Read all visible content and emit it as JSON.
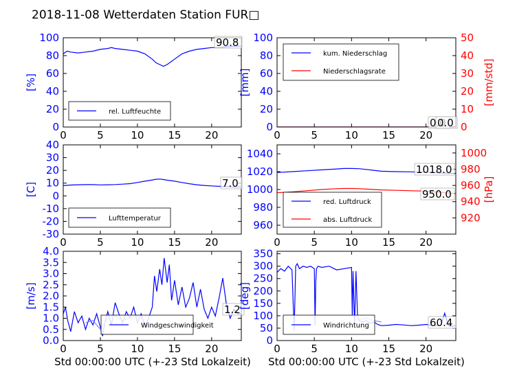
{
  "figure": {
    "title": "2018-11-08 Wetterdaten Station FUR□",
    "xlabel": "Std 00:00:00 UTC (+-23 Std Lokalzeit)"
  },
  "colors": {
    "blue": "#0000ff",
    "red": "#ff0000",
    "light_blue": "#8080ff"
  },
  "chart_data": [
    {
      "type": "line",
      "panel": "humidity",
      "ylabel": "[%]",
      "xlim": [
        0,
        24
      ],
      "ylim": [
        0,
        100
      ],
      "xticks": [
        0,
        5,
        10,
        15,
        20
      ],
      "yticks": [
        0,
        20,
        40,
        60,
        80,
        100
      ],
      "y_tick_color": "blue",
      "grid": false,
      "legend_position": "lower-left",
      "last_value_label": "90.8",
      "series": [
        {
          "name": "rel. Luftfeuchte",
          "color": "blue",
          "x": [
            0,
            0.5,
            1,
            2,
            3,
            4,
            5,
            6,
            6.5,
            7,
            8,
            9,
            10,
            11,
            12,
            12.5,
            13,
            13.5,
            14,
            15,
            16,
            17,
            18,
            19,
            20,
            21,
            22,
            23,
            24
          ],
          "y": [
            82,
            85,
            84,
            83,
            84,
            85,
            87,
            88,
            89,
            88,
            87,
            86,
            85,
            82,
            76,
            72,
            70,
            68,
            70,
            76,
            82,
            85,
            87,
            88,
            89,
            89,
            90,
            90.5,
            90.8
          ]
        }
      ]
    },
    {
      "type": "line",
      "panel": "precipitation",
      "ylabel": "[mm]",
      "ylabel_right": "[mm/std]",
      "xlim": [
        0,
        24
      ],
      "ylim": [
        0,
        100
      ],
      "ylim_right": [
        0,
        50
      ],
      "xticks": [
        0,
        5,
        10,
        15,
        20
      ],
      "yticks": [
        0,
        20,
        40,
        60,
        80,
        100
      ],
      "yticks_right": [
        0,
        10,
        20,
        30,
        40,
        50
      ],
      "y_tick_color": "blue",
      "y_tick_color_right": "red",
      "grid": false,
      "legend_position": "upper-left",
      "last_value_labels": [
        "0.0",
        "0.0"
      ],
      "series": [
        {
          "name": "kum. Niederschlag",
          "color": "blue",
          "axis": "left",
          "x": [
            0,
            24
          ],
          "y": [
            0,
            0
          ]
        },
        {
          "name": "Niederschlagsrate",
          "color": "red",
          "axis": "right",
          "x": [
            0,
            24
          ],
          "y": [
            0,
            0
          ]
        }
      ]
    },
    {
      "type": "line",
      "panel": "temperature",
      "ylabel": "[C]",
      "xlim": [
        0,
        24
      ],
      "ylim": [
        -30,
        40
      ],
      "xticks": [
        0,
        5,
        10,
        15,
        20
      ],
      "yticks": [
        -30,
        -20,
        -10,
        0,
        10,
        20,
        30,
        40
      ],
      "y_tick_color": "blue",
      "grid": false,
      "legend_position": "lower-left",
      "last_value_label": "7.0",
      "series": [
        {
          "name": "Lufttemperatur",
          "color": "blue",
          "x": [
            0,
            1,
            2,
            3,
            4,
            5,
            6,
            7,
            8,
            9,
            10,
            11,
            12,
            12.5,
            13,
            13.5,
            14,
            15,
            16,
            17,
            18,
            19,
            20,
            21,
            22,
            23,
            24
          ],
          "y": [
            8,
            8.5,
            8.7,
            8.8,
            8.8,
            8.6,
            8.7,
            8.9,
            9.2,
            9.6,
            10.5,
            11.5,
            12.5,
            13,
            13.2,
            12.8,
            12.3,
            11.5,
            10.5,
            9.5,
            8.7,
            8.2,
            7.8,
            7.5,
            7.2,
            7.0,
            7.0
          ]
        }
      ]
    },
    {
      "type": "line",
      "panel": "pressure",
      "ylabel_right": "[hPa]",
      "xlim": [
        0,
        24
      ],
      "ylim": [
        950,
        1050
      ],
      "ylim_right": [
        900,
        1010
      ],
      "xticks": [
        0,
        5,
        10,
        15,
        20
      ],
      "yticks": [
        960,
        980,
        1000,
        1020,
        1040
      ],
      "yticks_right": [
        920,
        940,
        960,
        980,
        1000
      ],
      "y_tick_color": "blue",
      "y_tick_color_right": "red",
      "grid": false,
      "legend_position": "lower-left",
      "last_value_labels": [
        "1018.0",
        "950.0"
      ],
      "series": [
        {
          "name": "red. Luftdruck",
          "color": "blue",
          "axis": "left",
          "x": [
            0,
            2,
            4,
            6,
            8,
            9,
            10,
            11,
            12,
            13,
            14,
            16,
            18,
            20,
            22,
            24
          ],
          "y": [
            1019,
            1020,
            1021,
            1022,
            1023,
            1023.5,
            1023.5,
            1023.3,
            1022.5,
            1021.5,
            1020.5,
            1020,
            1019.8,
            1019.5,
            1018.5,
            1018
          ]
        },
        {
          "name": "abs. Luftdruck",
          "color": "red",
          "axis": "right",
          "x": [
            0,
            2,
            4,
            6,
            8,
            9,
            10,
            11,
            12,
            13,
            14,
            16,
            18,
            20,
            22,
            24
          ],
          "y": [
            951,
            952,
            953.5,
            955,
            956,
            956.3,
            956.3,
            956,
            955.5,
            955,
            954.5,
            954,
            953.5,
            953,
            951.5,
            950
          ]
        }
      ]
    },
    {
      "type": "line",
      "panel": "wind_speed",
      "ylabel": "[m/s]",
      "xlim": [
        0,
        24
      ],
      "ylim": [
        0,
        4
      ],
      "xticks": [
        0,
        5,
        10,
        15,
        20
      ],
      "yticks": [
        0.0,
        0.5,
        1.0,
        1.5,
        2.0,
        2.5,
        3.0,
        3.5,
        4.0
      ],
      "y_tick_color": "blue",
      "grid": false,
      "legend_position": "lower-right",
      "last_value_label": "1.2",
      "series": [
        {
          "name": "Windgeschwindigkeit",
          "color": "blue",
          "x": [
            0,
            0.3,
            0.6,
            1,
            1.5,
            2,
            2.5,
            3,
            3.5,
            4,
            4.5,
            5,
            5.3,
            5.6,
            6,
            6.5,
            7,
            7.5,
            8,
            8.5,
            9,
            9.5,
            10,
            10.5,
            11,
            11.5,
            12,
            12.3,
            12.6,
            13,
            13.3,
            13.6,
            14,
            14.3,
            14.6,
            15,
            15.5,
            16,
            16.5,
            17,
            17.5,
            18,
            18.5,
            19,
            19.5,
            20,
            20.5,
            21,
            21.5,
            22,
            22.5,
            23,
            23.5,
            24
          ],
          "y": [
            1.2,
            1.5,
            0.9,
            0.4,
            1.3,
            0.8,
            1.1,
            0.5,
            1.0,
            0.7,
            1.2,
            0.6,
            0.2,
            0.8,
            1.3,
            0.7,
            1.7,
            1.2,
            0.8,
            1.3,
            1.0,
            1.5,
            0.8,
            1.2,
            0.6,
            1.0,
            1.5,
            2.9,
            2.2,
            3.2,
            2.5,
            3.7,
            2.6,
            3.4,
            1.8,
            2.7,
            1.6,
            2.4,
            1.5,
            1.9,
            2.6,
            1.5,
            2.3,
            1.4,
            1.0,
            1.5,
            1.1,
            1.9,
            2.8,
            1.6,
            1.0,
            1.4,
            1.2,
            1.2
          ]
        },
        {
          "color": "light_blue",
          "x": [
            3,
            4,
            5,
            6,
            7,
            8,
            9,
            10,
            11
          ],
          "y": [
            0.8,
            0.9,
            0.5,
            1.0,
            1.1,
            0.9,
            1.0,
            1.1,
            0.9
          ]
        }
      ]
    },
    {
      "type": "line",
      "panel": "wind_direction",
      "ylabel": "[deg]",
      "xlim": [
        0,
        24
      ],
      "ylim": [
        0,
        360
      ],
      "xticks": [
        0,
        5,
        10,
        15,
        20
      ],
      "yticks": [
        0,
        50,
        100,
        150,
        200,
        250,
        300,
        350
      ],
      "y_tick_color": "blue",
      "grid": false,
      "legend_position": "lower-left",
      "last_value_label": "60.4",
      "series": [
        {
          "name": "Windrichtung",
          "color": "blue",
          "x": [
            0,
            0.5,
            1,
            1.5,
            2,
            2.3,
            2.5,
            2.7,
            3,
            3.5,
            4,
            4.5,
            5,
            5.1,
            5.2,
            5.3,
            5.5,
            6,
            7,
            8,
            9,
            10,
            10.1,
            10.2,
            10.4,
            10.6,
            10.8,
            11,
            11.5,
            12,
            12.5,
            13,
            13.5,
            14,
            15,
            16,
            17,
            18,
            19,
            20,
            21,
            22,
            22.5,
            23,
            23.5,
            24
          ],
          "y": [
            275,
            290,
            280,
            300,
            285,
            40,
            300,
            310,
            290,
            300,
            295,
            300,
            290,
            60,
            240,
            290,
            300,
            295,
            300,
            285,
            290,
            295,
            100,
            280,
            60,
            280,
            100,
            80,
            75,
            80,
            70,
            75,
            65,
            60,
            62,
            65,
            63,
            60,
            62,
            65,
            60,
            62,
            110,
            60,
            58,
            60
          ]
        },
        {
          "color": "light_blue",
          "x": [
            11,
            12,
            13,
            14
          ],
          "y": [
            85,
            90,
            80,
            75
          ]
        }
      ]
    }
  ]
}
